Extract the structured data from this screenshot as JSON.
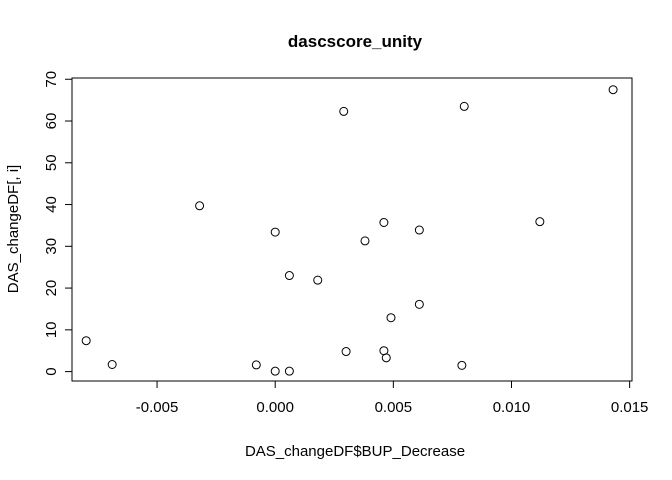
{
  "chart_data": {
    "type": "scatter",
    "title": "dascscore_unity",
    "xlabel": "DAS_changeDF$BUP_Decrease",
    "ylabel": "DAS_changeDF[, i]",
    "xlim": [
      -0.0086,
      0.0151
    ],
    "ylim": [
      -2.25,
      70.3
    ],
    "x_ticks": [
      -0.005,
      0.0,
      0.005,
      0.01,
      0.015
    ],
    "x_tick_labels": [
      "-0.005",
      "0.000",
      "0.005",
      "0.010",
      "0.015"
    ],
    "y_ticks": [
      0,
      10,
      20,
      30,
      40,
      50,
      60,
      70
    ],
    "y_tick_labels": [
      "0",
      "10",
      "20",
      "30",
      "40",
      "50",
      "60",
      "70"
    ],
    "grid": false,
    "marker": "open-circle",
    "points": [
      {
        "x": -0.008,
        "y": 7.4
      },
      {
        "x": -0.0069,
        "y": 1.7
      },
      {
        "x": -0.0032,
        "y": 39.7
      },
      {
        "x": -0.0008,
        "y": 1.6
      },
      {
        "x": 0.0,
        "y": 33.4
      },
      {
        "x": 0.0,
        "y": 0.1
      },
      {
        "x": 0.0006,
        "y": 23.0
      },
      {
        "x": 0.0006,
        "y": 0.1
      },
      {
        "x": 0.0018,
        "y": 21.9
      },
      {
        "x": 0.0029,
        "y": 62.3
      },
      {
        "x": 0.003,
        "y": 4.8
      },
      {
        "x": 0.0038,
        "y": 31.3
      },
      {
        "x": 0.0046,
        "y": 35.7
      },
      {
        "x": 0.0046,
        "y": 5.0
      },
      {
        "x": 0.0047,
        "y": 3.3
      },
      {
        "x": 0.0049,
        "y": 12.9
      },
      {
        "x": 0.0061,
        "y": 16.1
      },
      {
        "x": 0.0061,
        "y": 33.9
      },
      {
        "x": 0.0079,
        "y": 1.5
      },
      {
        "x": 0.008,
        "y": 63.5
      },
      {
        "x": 0.0112,
        "y": 35.9
      },
      {
        "x": 0.0143,
        "y": 67.5
      }
    ]
  }
}
